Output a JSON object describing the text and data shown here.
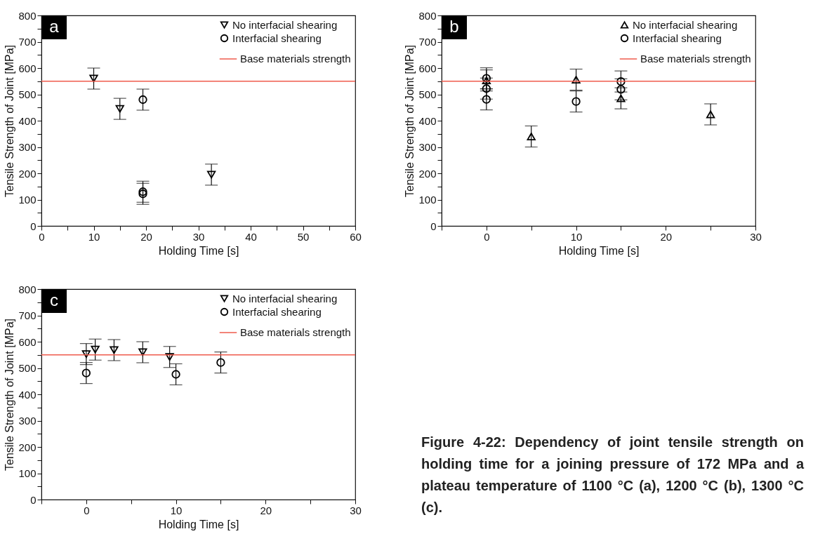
{
  "chart_data": [
    {
      "type": "scatter",
      "xlabel": "Holding Time [s]",
      "ylabel": "Tensile Strength of Joint [MPa]",
      "xlim": [
        0,
        60
      ],
      "xticks": [
        0,
        {
          "value": 5,
          "label": null
        },
        10,
        {
          "value": 15,
          "label": null
        },
        20,
        {
          "value": 25,
          "label": null
        },
        30,
        {
          "value": 35,
          "label": null
        },
        40,
        {
          "value": 45,
          "label": null
        },
        50,
        {
          "value": 55,
          "label": null
        },
        60
      ],
      "ylim": [
        0,
        800
      ],
      "yticks": [
        0,
        {
          "value": 50,
          "label": null
        },
        100,
        {
          "value": 150,
          "label": null
        },
        200,
        {
          "value": 250,
          "label": null
        },
        300,
        {
          "value": 350,
          "label": null
        },
        400,
        {
          "value": 450,
          "label": null
        },
        500,
        {
          "value": 550,
          "label": null
        },
        600,
        {
          "value": 650,
          "label": null
        },
        700,
        {
          "value": 750,
          "label": null
        },
        800
      ],
      "grid": false,
      "legend": "top right",
      "annotations": [
        "a"
      ],
      "series": [
        {
          "name": "No interfacial shearing",
          "color": "#000000",
          "marker": "triangle-down",
          "x": [
            10,
            15,
            32.5
          ],
          "values": [
            560,
            445,
            195
          ],
          "errors": [
            40,
            40,
            40
          ]
        },
        {
          "name": "Interfacial shearing",
          "color": "#000000",
          "marker": "circle",
          "x": [
            19.4,
            19.4,
            19.4
          ],
          "values": [
            480,
            130,
            122
          ],
          "errors": [
            40,
            40,
            40
          ]
        }
      ],
      "ref_lines": [
        {
          "axis": "y",
          "value": 550,
          "label": "Base materials strength",
          "color": "#ef5b4c"
        }
      ]
    },
    {
      "type": "scatter",
      "xlabel": "Holding Time [s]",
      "ylabel": "Tensile Strength of Joint [MPa]",
      "xlim": [
        -5,
        30
      ],
      "xticks": [
        {
          "value": -5,
          "label": null
        },
        0,
        {
          "value": 5,
          "label": null
        },
        10,
        {
          "value": 15,
          "label": null
        },
        20,
        {
          "value": 25,
          "label": null
        },
        30
      ],
      "ylim": [
        0,
        800
      ],
      "yticks": [
        0,
        {
          "value": 50,
          "label": null
        },
        100,
        {
          "value": 150,
          "label": null
        },
        200,
        {
          "value": 250,
          "label": null
        },
        300,
        {
          "value": 350,
          "label": null
        },
        400,
        {
          "value": 450,
          "label": null
        },
        500,
        {
          "value": 550,
          "label": null
        },
        600,
        {
          "value": 650,
          "label": null
        },
        700,
        {
          "value": 750,
          "label": null
        },
        800
      ],
      "grid": false,
      "legend": "top right",
      "annotations": [
        "b"
      ],
      "series": [
        {
          "name": "No interfacial shearing",
          "color": "#000000",
          "marker": "triangle",
          "x": [
            0,
            5,
            10,
            15,
            25
          ],
          "values": [
            553,
            340,
            556,
            485,
            424
          ],
          "errors": [
            40,
            40,
            40,
            40,
            40
          ]
        },
        {
          "name": "Interfacial shearing",
          "color": "#000000",
          "marker": "circle",
          "x": [
            0,
            0,
            0,
            10,
            15,
            15
          ],
          "values": [
            561,
            522,
            481,
            473,
            549,
            519
          ],
          "errors": [
            40,
            40,
            40,
            40,
            40,
            40
          ]
        }
      ],
      "ref_lines": [
        {
          "axis": "y",
          "value": 550,
          "label": "Base materials strength",
          "color": "#ef5b4c"
        }
      ]
    },
    {
      "type": "scatter",
      "xlabel": "Holding Time [s]",
      "ylabel": "Tensile Strength of Joint [MPa]",
      "xlim": [
        -5,
        30
      ],
      "xticks": [
        {
          "value": -5,
          "label": null
        },
        0,
        {
          "value": 5,
          "label": null
        },
        10,
        {
          "value": 15,
          "label": null
        },
        20,
        {
          "value": 25,
          "label": null
        },
        30
      ],
      "ylim": [
        0,
        800
      ],
      "yticks": [
        0,
        {
          "value": 50,
          "label": null
        },
        100,
        {
          "value": 150,
          "label": null
        },
        200,
        {
          "value": 250,
          "label": null
        },
        300,
        {
          "value": 350,
          "label": null
        },
        400,
        {
          "value": 450,
          "label": null
        },
        500,
        {
          "value": 550,
          "label": null
        },
        600,
        {
          "value": 650,
          "label": null
        },
        700,
        {
          "value": 750,
          "label": null
        },
        800
      ],
      "grid": false,
      "legend": "top right",
      "annotations": [
        "c"
      ],
      "series": [
        {
          "name": "No interfacial shearing",
          "color": "#000000",
          "marker": "triangle-down",
          "x": [
            0,
            1,
            3.1,
            6.3,
            9.3
          ],
          "values": [
            553,
            570,
            568,
            560,
            542
          ],
          "errors": [
            40,
            40,
            40,
            40,
            40
          ]
        },
        {
          "name": "Interfacial shearing",
          "color": "#000000",
          "marker": "circle",
          "x": [
            0,
            10,
            15
          ],
          "values": [
            481,
            476,
            521
          ],
          "errors": [
            40,
            40,
            40
          ]
        }
      ],
      "ref_lines": [
        {
          "axis": "y",
          "value": 550,
          "label": "Base materials strength",
          "color": "#ef5b4c"
        }
      ]
    },
    {
      "type": "other",
      "annotations": [
        "Figure 4-22: Dependency of joint tensile strength on holding time for a joining pressure of 172 MPa and a plateau temperature of 1100 °C (a), 1200 °C (b), 1300 °C (c)."
      ]
    }
  ]
}
